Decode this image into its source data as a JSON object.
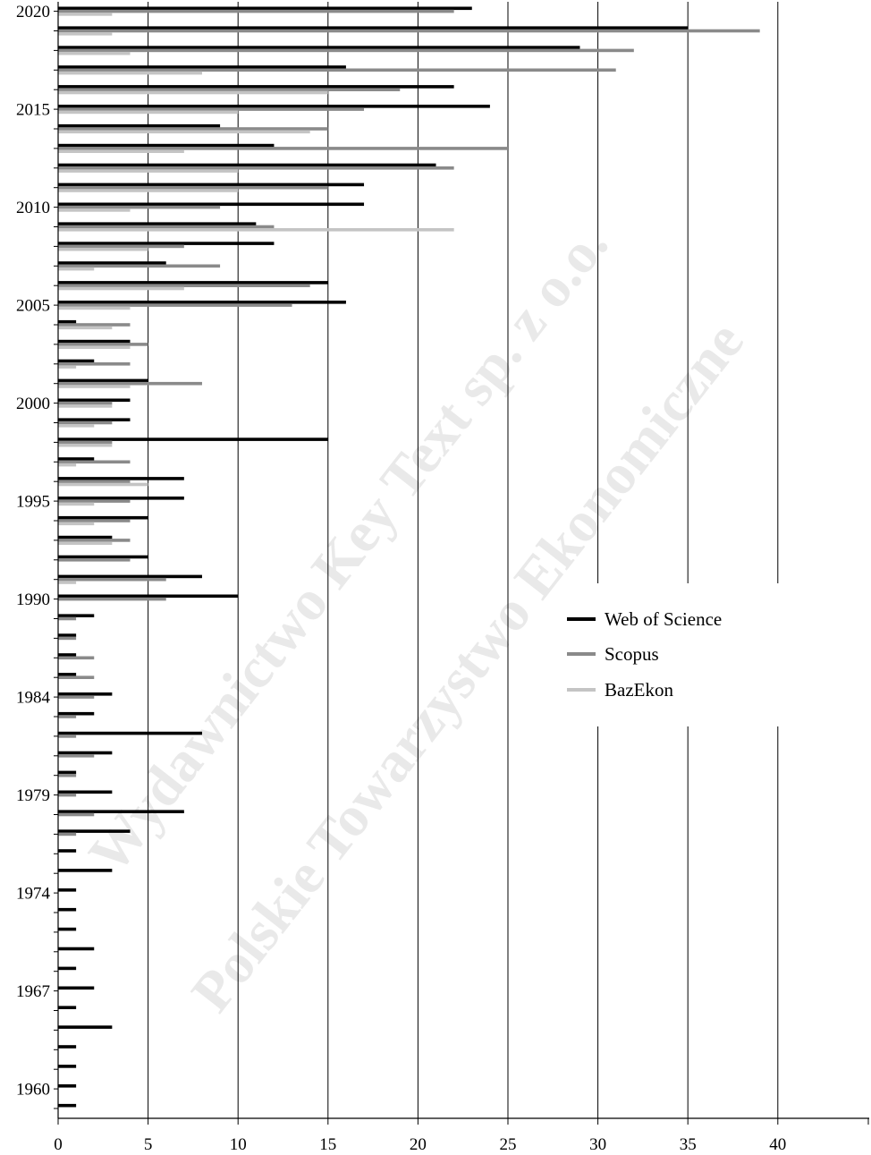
{
  "watermark": {
    "line1": "Wydawnictwo Key Text sp. z o.o.",
    "line2": "Polskie Towarzystwo Ekonomiczne"
  },
  "chart_data": {
    "type": "bar",
    "orientation": "horizontal",
    "xlim": [
      0,
      45
    ],
    "x_ticks": [
      0,
      5,
      10,
      15,
      20,
      25,
      30,
      35,
      40
    ],
    "grid": true,
    "legend_position": "right",
    "y_tick_labels": [
      "2020",
      "2015",
      "2010",
      "2005",
      "2000",
      "1995",
      "1990",
      "1984",
      "1979",
      "1974",
      "1967",
      "1960"
    ],
    "y_tick_positions": [
      "2020",
      "2015",
      "2010",
      "2005",
      "2000",
      "1995",
      "1990",
      "1984",
      "1979",
      "1974",
      "1967",
      "1960"
    ],
    "categories": [
      "2020",
      "2019",
      "2018",
      "2017",
      "2016",
      "2015",
      "2014",
      "2013",
      "2012",
      "2011",
      "2010",
      "2009",
      "2008",
      "2007",
      "2006",
      "2005",
      "2004",
      "2003",
      "2002",
      "2001",
      "2000",
      "1999",
      "1998",
      "1997",
      "1996",
      "1995",
      "1994",
      "1993",
      "1992",
      "1991",
      "1990",
      "1989",
      "1988",
      "1987",
      "1986",
      "1984",
      "1983",
      "1982",
      "1981",
      "1980",
      "1979",
      "1978",
      "1977",
      "1976",
      "1975",
      "1974",
      "1972",
      "1971",
      "1970",
      "1969",
      "1967",
      "1966",
      "1964",
      "1963",
      "1962",
      "1960",
      "1959"
    ],
    "series": [
      {
        "name": "Web of Science",
        "color": "#000000",
        "values": [
          23,
          35,
          29,
          16,
          22,
          24,
          9,
          12,
          21,
          17,
          17,
          11,
          12,
          6,
          15,
          16,
          1,
          4,
          2,
          5,
          4,
          4,
          15,
          2,
          7,
          7,
          5,
          3,
          5,
          8,
          10,
          2,
          1,
          1,
          1,
          3,
          2,
          8,
          3,
          1,
          3,
          7,
          4,
          1,
          3,
          1,
          1,
          1,
          2,
          1,
          2,
          1,
          3,
          1,
          1,
          1,
          1
        ]
      },
      {
        "name": "Scopus",
        "color": "#8a8a8a",
        "values": [
          22,
          39,
          32,
          31,
          19,
          17,
          15,
          25,
          22,
          15,
          9,
          12,
          7,
          9,
          14,
          13,
          4,
          5,
          4,
          8,
          3,
          3,
          3,
          4,
          4,
          4,
          4,
          4,
          4,
          6,
          6,
          1,
          1,
          2,
          2,
          2,
          1,
          1,
          2,
          1,
          1,
          2,
          1,
          0,
          0,
          0,
          0,
          0,
          0,
          0,
          0,
          0,
          0,
          0,
          0,
          0,
          0
        ]
      },
      {
        "name": "BazEkon",
        "color": "#c4c4c4",
        "values": [
          3,
          3,
          4,
          8,
          15,
          10,
          14,
          7,
          10,
          10,
          4,
          22,
          5,
          2,
          7,
          4,
          3,
          4,
          1,
          4,
          3,
          2,
          3,
          1,
          5,
          2,
          2,
          3,
          0,
          1,
          0,
          0,
          0,
          0,
          0,
          0,
          0,
          0,
          0,
          0,
          0,
          0,
          0,
          0,
          0,
          0,
          0,
          0,
          0,
          0,
          0,
          0,
          0,
          0,
          0,
          0,
          0
        ]
      }
    ]
  }
}
